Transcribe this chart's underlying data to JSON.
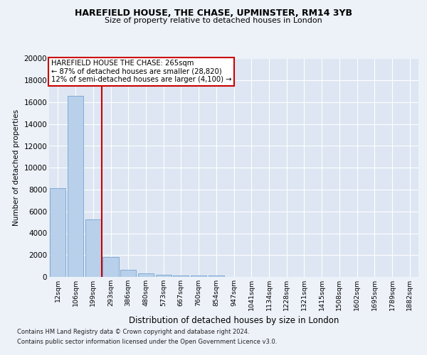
{
  "title1": "HAREFIELD HOUSE, THE CHASE, UPMINSTER, RM14 3YB",
  "title2": "Size of property relative to detached houses in London",
  "xlabel": "Distribution of detached houses by size in London",
  "ylabel": "Number of detached properties",
  "categories": [
    "12sqm",
    "106sqm",
    "199sqm",
    "293sqm",
    "386sqm",
    "480sqm",
    "573sqm",
    "667sqm",
    "760sqm",
    "854sqm",
    "947sqm",
    "1041sqm",
    "1134sqm",
    "1228sqm",
    "1321sqm",
    "1415sqm",
    "1508sqm",
    "1602sqm",
    "1695sqm",
    "1789sqm",
    "1882sqm"
  ],
  "values": [
    8100,
    16600,
    5300,
    1850,
    650,
    350,
    200,
    150,
    120,
    100,
    0,
    0,
    0,
    0,
    0,
    0,
    0,
    0,
    0,
    0,
    0
  ],
  "bar_color": "#b8d0ea",
  "bar_edge_color": "#6699cc",
  "vline_color": "#cc0000",
  "annotation_title": "HAREFIELD HOUSE THE CHASE: 265sqm",
  "annotation_line1": "← 87% of detached houses are smaller (28,820)",
  "annotation_line2": "12% of semi-detached houses are larger (4,100) →",
  "annotation_box_color": "#cc0000",
  "ylim": [
    0,
    20000
  ],
  "yticks": [
    0,
    2000,
    4000,
    6000,
    8000,
    10000,
    12000,
    14000,
    16000,
    18000,
    20000
  ],
  "footer1": "Contains HM Land Registry data © Crown copyright and database right 2024.",
  "footer2": "Contains public sector information licensed under the Open Government Licence v3.0.",
  "bg_color": "#edf2f9",
  "plot_bg_color": "#dde6f2"
}
